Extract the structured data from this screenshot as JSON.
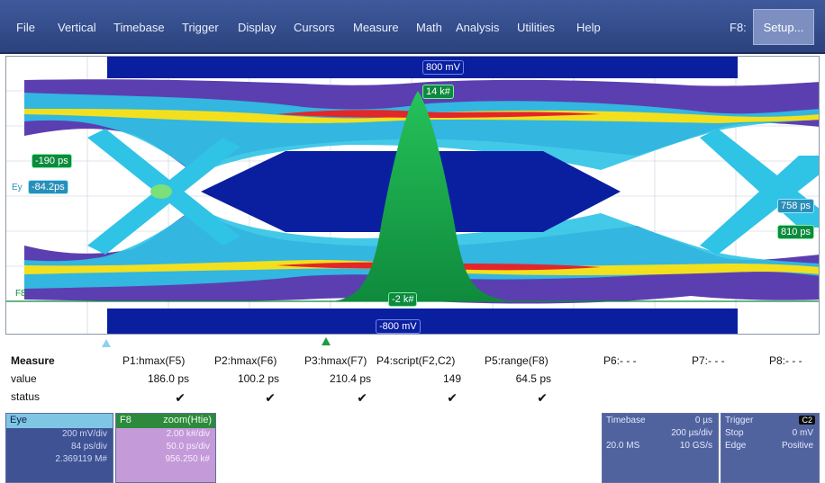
{
  "menubar": {
    "items": [
      "File",
      "Vertical",
      "Timebase",
      "Trigger",
      "Display",
      "Cursors",
      "Measure",
      "Math",
      "Analysis",
      "Utilities",
      "Help"
    ],
    "f8_label": "F8:",
    "setup_label": "Setup..."
  },
  "screen": {
    "top_level": "800 mV",
    "bottom_level": "-800 mV",
    "peak_count": "14 k#",
    "base_count": "-2 k#",
    "left_tag_upper": "-190 ps",
    "left_tag_lower": "-84.2ps",
    "right_tag_upper": "758 ps",
    "right_tag_lower": "810 ps",
    "ey_label": "Ey",
    "f8_trace_label": "F8",
    "colors": {
      "band_fill": "#0a1fa0",
      "histogram": "#14a04a",
      "eye_outer": "#5b3fb0",
      "eye_mid": "#2fc3e6",
      "eye_hot": "#f2e01e",
      "eye_peak": "#e3262a"
    }
  },
  "measure": {
    "headers": [
      "Measure",
      "P1:hmax(F5)",
      "P2:hmax(F6)",
      "P3:hmax(F7)",
      "P4:script(F2,C2)",
      "P5:range(F8)",
      "P6:- - -",
      "P7:- - -",
      "P8:- - -"
    ],
    "value_label": "value",
    "values": [
      "186.0 ps",
      "100.2 ps",
      "210.4 ps",
      "149",
      "64.5 ps"
    ],
    "status_label": "status",
    "status_marks": [
      "✔",
      "✔",
      "✔",
      "✔",
      "✔"
    ]
  },
  "panels": {
    "eye": {
      "title": "Eye",
      "lines": [
        "200 mV/div",
        "84 ps/div",
        "2.369119 M#"
      ]
    },
    "zoom": {
      "id": "F8",
      "title": "zoom(Htie)",
      "lines": [
        "2.00 k#/div",
        "50.0 ps/div",
        "956.250 k#"
      ]
    },
    "timebase": {
      "title": "Timebase",
      "delay": "0 µs",
      "scale": "200 µs/div",
      "samples": "20.0 MS",
      "rate": "10 GS/s"
    },
    "trigger": {
      "title": "Trigger",
      "channel": "C2",
      "mode": "Stop",
      "level": "0 mV",
      "type": "Edge",
      "slope": "Positive"
    }
  }
}
